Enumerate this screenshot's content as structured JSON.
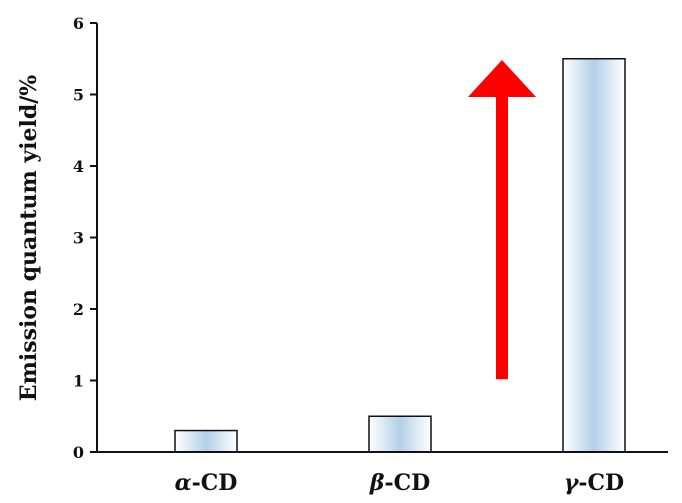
{
  "chart_data": {
    "type": "bar",
    "title": "",
    "xlabel": "",
    "ylabel": "Emission quantum yield/%",
    "categories": [
      {
        "prefix": "α",
        "suffix": "-CD"
      },
      {
        "prefix": "β",
        "suffix": "-CD"
      },
      {
        "prefix": "γ",
        "suffix": "-CD"
      }
    ],
    "values": [
      0.3,
      0.5,
      5.5
    ],
    "ylim": [
      0,
      6
    ],
    "yticks": [
      "0",
      "1",
      "2",
      "3",
      "4",
      "5",
      "6"
    ],
    "grid": false,
    "legend": "none",
    "bar_fill_edge": "#ffffff",
    "bar_fill_center": "#b3cfe8",
    "bar_stroke": "#111111",
    "axis_color": "#111111",
    "annotation": {
      "type": "arrow",
      "direction": "up",
      "color": "#ff0000",
      "from_value": 0.5,
      "to_value": 5.5
    }
  }
}
